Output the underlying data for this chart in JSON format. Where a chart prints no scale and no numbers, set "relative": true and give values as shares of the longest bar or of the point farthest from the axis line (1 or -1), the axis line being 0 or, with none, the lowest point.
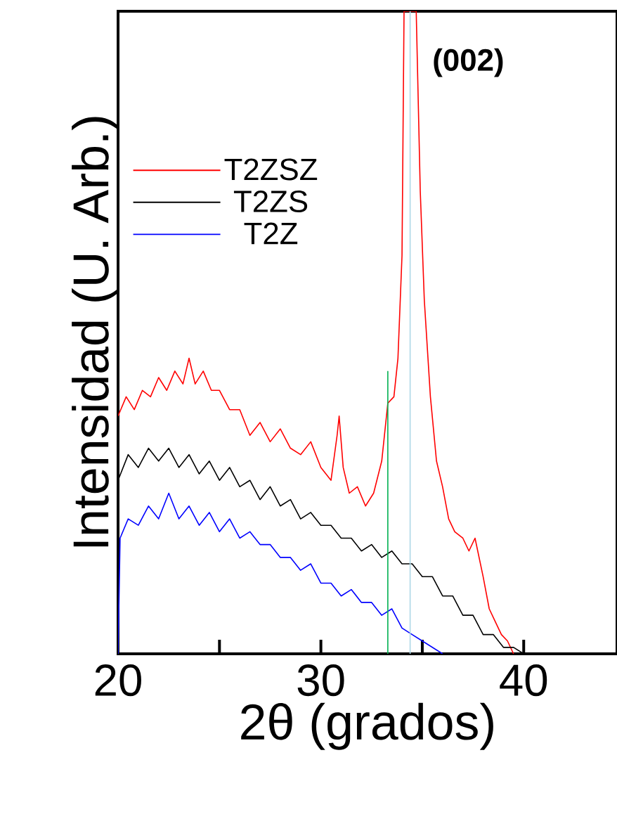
{
  "chart_data": {
    "type": "line",
    "xlabel": "2θ (grados)",
    "ylabel": "Intensidad (U. Arb.)",
    "relative": true,
    "xlim": [
      20,
      44.6
    ],
    "xticks": [
      20,
      {
        "value": 25,
        "label": null
      },
      30,
      {
        "value": 35,
        "label": null
      },
      40
    ],
    "legend": "left",
    "annotations": [
      "**(002)**"
    ],
    "series": [
      {
        "name": "T2ZSZ",
        "color": "#ff0000",
        "x": [
          20,
          20.4,
          20.8,
          21.2,
          21.6,
          22,
          22.4,
          22.8,
          23.2,
          23.5,
          23.8,
          24.2,
          24.6,
          25,
          25.5,
          26,
          26.5,
          27,
          27.5,
          28,
          28.5,
          29,
          29.5,
          30,
          30.5,
          30.8,
          30.9,
          31.1,
          31.4,
          31.8,
          32.2,
          32.6,
          33,
          33.3,
          33.6,
          33.8,
          34,
          34.1,
          34.7,
          34.9,
          35.1,
          35.4,
          35.7,
          36,
          36.3,
          36.6,
          37,
          37.3,
          37.6,
          38,
          38.3,
          38.6,
          38.9,
          39.2,
          39.5
        ],
        "values": [
          0.37,
          0.4,
          0.38,
          0.41,
          0.4,
          0.43,
          0.41,
          0.44,
          0.42,
          0.46,
          0.42,
          0.44,
          0.41,
          0.41,
          0.38,
          0.38,
          0.34,
          0.36,
          0.33,
          0.35,
          0.32,
          0.31,
          0.33,
          0.29,
          0.27,
          0.34,
          0.37,
          0.29,
          0.25,
          0.26,
          0.23,
          0.25,
          0.3,
          0.39,
          0.4,
          0.46,
          0.62,
          1.0,
          1.0,
          0.72,
          0.55,
          0.4,
          0.3,
          0.26,
          0.21,
          0.19,
          0.18,
          0.16,
          0.18,
          0.12,
          0.07,
          0.05,
          0.03,
          0.02,
          0.0
        ]
      },
      {
        "name": "T2ZS",
        "color": "#000000",
        "x": [
          20,
          20.5,
          21,
          21.5,
          22,
          22.5,
          23,
          23.5,
          24,
          24.5,
          25,
          25.5,
          26,
          26.5,
          27,
          27.5,
          28,
          28.5,
          29,
          29.5,
          30,
          30.5,
          31,
          31.5,
          32,
          32.5,
          33,
          33.5,
          34,
          34.5,
          35,
          35.5,
          36,
          36.5,
          37,
          37.5,
          38,
          38.5,
          39,
          39.5,
          40
        ],
        "values": [
          0.27,
          0.31,
          0.29,
          0.32,
          0.3,
          0.32,
          0.29,
          0.31,
          0.28,
          0.3,
          0.27,
          0.29,
          0.26,
          0.27,
          0.24,
          0.26,
          0.23,
          0.24,
          0.21,
          0.22,
          0.2,
          0.2,
          0.18,
          0.18,
          0.16,
          0.17,
          0.15,
          0.16,
          0.14,
          0.14,
          0.12,
          0.12,
          0.09,
          0.09,
          0.06,
          0.06,
          0.03,
          0.03,
          0.01,
          0.01,
          0.0
        ]
      },
      {
        "name": "T2Z",
        "color": "#0000ff",
        "x": [
          20,
          20.1,
          20.5,
          21,
          21.5,
          22,
          22.5,
          23,
          23.5,
          24,
          24.5,
          25,
          25.5,
          26,
          26.5,
          27,
          27.5,
          28,
          28.5,
          29,
          29.5,
          30,
          30.5,
          31,
          31.5,
          32,
          32.5,
          33,
          33.5,
          34,
          34.5,
          35,
          35.5,
          36
        ],
        "values": [
          0.0,
          0.18,
          0.21,
          0.2,
          0.23,
          0.21,
          0.25,
          0.21,
          0.23,
          0.2,
          0.22,
          0.19,
          0.21,
          0.18,
          0.19,
          0.17,
          0.17,
          0.15,
          0.15,
          0.13,
          0.14,
          0.11,
          0.11,
          0.09,
          0.1,
          0.08,
          0.08,
          0.06,
          0.07,
          0.04,
          0.03,
          0.02,
          0.01,
          0.0
        ]
      },
      {
        "color": "#00b050",
        "x": [
          33.3,
          33.3
        ],
        "values": [
          0,
          0.44
        ]
      },
      {
        "color": "#add8e6",
        "x": [
          34.4,
          34.4
        ],
        "values": [
          0,
          1.0
        ]
      }
    ]
  }
}
